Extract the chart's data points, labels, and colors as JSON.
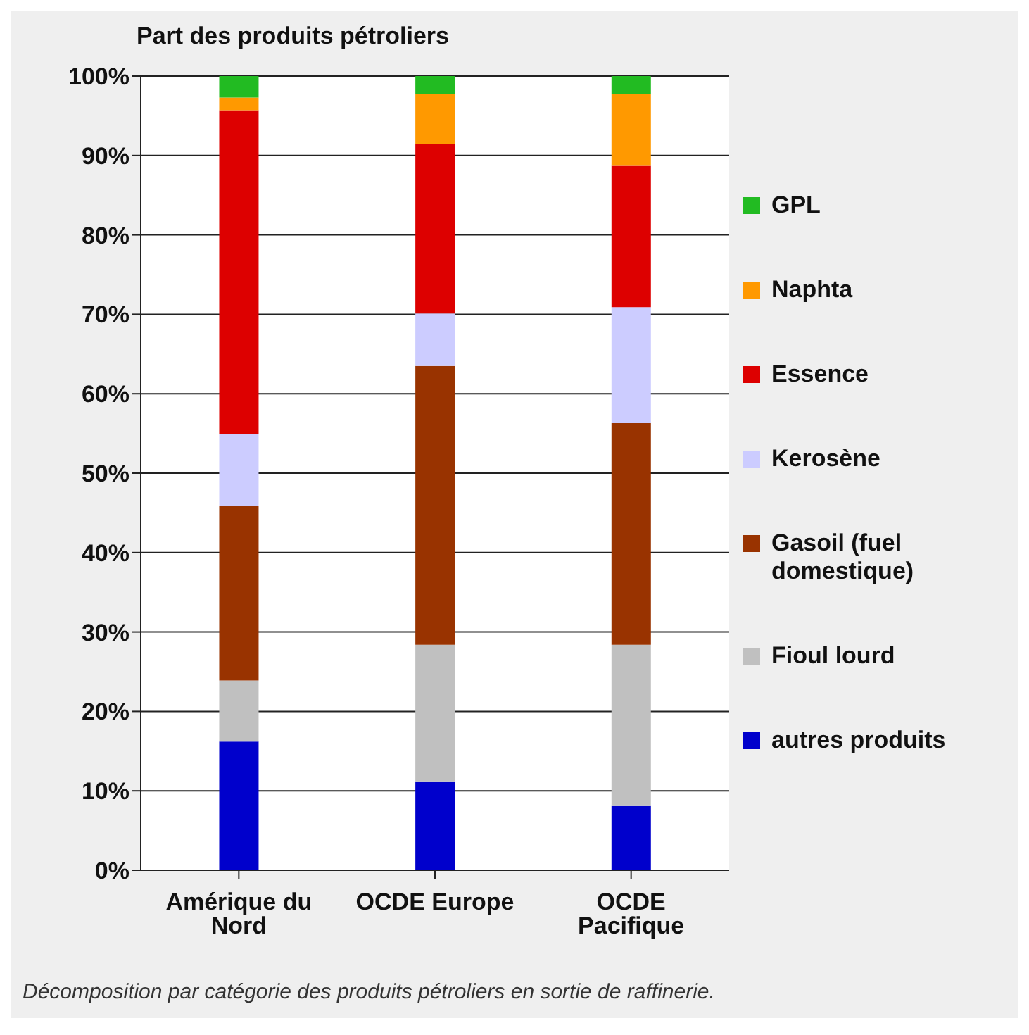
{
  "chart_data": {
    "type": "bar",
    "title": "Part des produits pétroliers",
    "categories": [
      "Amérique du Nord",
      "OCDE Europe",
      "OCDE Pacifique"
    ],
    "stacked": true,
    "ylim": [
      0,
      100
    ],
    "yticks": [
      {
        "value": 0,
        "label": "0%"
      },
      {
        "value": 10,
        "label": "10%"
      },
      {
        "value": 20,
        "label": "20%"
      },
      {
        "value": 30,
        "label": "30%"
      },
      {
        "value": 40,
        "label": "40%"
      },
      {
        "value": 50,
        "label": "50%"
      },
      {
        "value": 60,
        "label": "60%"
      },
      {
        "value": 70,
        "label": "70%"
      },
      {
        "value": 80,
        "label": "80%"
      },
      {
        "value": 90,
        "label": "90%"
      },
      {
        "value": 100,
        "label": "100%"
      }
    ],
    "grid": "y",
    "legend": "right",
    "annotations": [
      "Décomposition par catégorie des produits pétroliers en sortie de raffinerie."
    ],
    "series": [
      {
        "name": "autres produits",
        "color": "#0000cc",
        "values": [
          16.2,
          11.2,
          8.1
        ]
      },
      {
        "name": "Fioul lourd",
        "color": "#c0c0c0",
        "values": [
          7.7,
          17.2,
          20.3
        ]
      },
      {
        "name": "Gasoil (fuel domestique)",
        "color": "#993300",
        "values": [
          22,
          35.1,
          27.9
        ]
      },
      {
        "name": "Kerosène",
        "color": "#ccccff",
        "values": [
          9,
          6.6,
          14.6
        ]
      },
      {
        "name": "Essence",
        "color": "#dd0000",
        "values": [
          40.8,
          21.4,
          17.8
        ]
      },
      {
        "name": "Naphta",
        "color": "#ff9900",
        "values": [
          1.6,
          6.2,
          9
        ]
      },
      {
        "name": "GPL",
        "color": "#22bb22",
        "values": [
          2.7,
          2.3,
          2.3
        ]
      }
    ]
  }
}
